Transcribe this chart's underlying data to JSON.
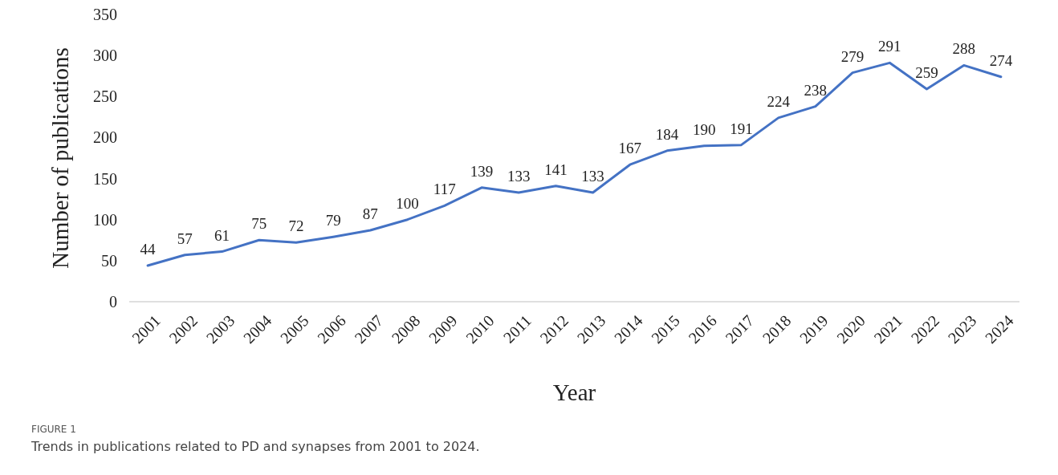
{
  "chart_data": {
    "type": "line",
    "xlabel": "Year",
    "ylabel": "Number of publications",
    "categories": [
      "2001",
      "2002",
      "2003",
      "2004",
      "2005",
      "2006",
      "2007",
      "2008",
      "2009",
      "2010",
      "2011",
      "2012",
      "2013",
      "2014",
      "2015",
      "2016",
      "2017",
      "2018",
      "2019",
      "2020",
      "2021",
      "2022",
      "2023",
      "2024"
    ],
    "series": [
      {
        "color": "#4472c4",
        "values": [
          44,
          57,
          61,
          75,
          72,
          79,
          87,
          100,
          117,
          139,
          133,
          141,
          133,
          167,
          184,
          190,
          191,
          224,
          238,
          279,
          291,
          259,
          288,
          274
        ]
      }
    ],
    "ylim": [
      0,
      350
    ],
    "yticks": [
      0,
      50,
      100,
      150,
      200,
      250,
      300,
      350
    ],
    "grid": false,
    "marker": "none",
    "line_style": "solid",
    "data_labels": true,
    "annotations": [
      "FIGURE 1",
      "Trends in publications related to PD and synapses from 2001 to 2024."
    ]
  }
}
